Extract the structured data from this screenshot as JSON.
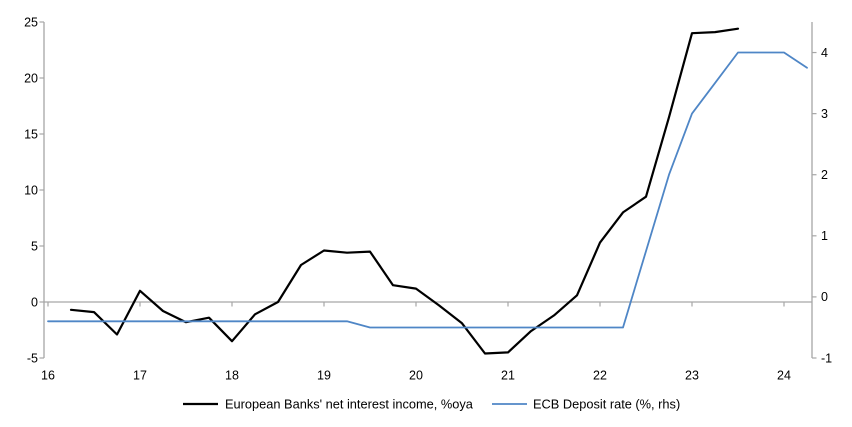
{
  "chart_data": {
    "type": "line",
    "title": "",
    "grid": "zero-line-only",
    "legend_position": "bottom-center",
    "background": "#ffffff",
    "axis_color": "#a6a6a6",
    "series": [
      {
        "name": "european-banks-nii",
        "legend_label": "European Banks' net interest income, %oya",
        "axis": "left",
        "color": "#000000",
        "stroke_width": 2.2,
        "x": [
          16.25,
          16.5,
          16.75,
          17.0,
          17.25,
          17.5,
          17.75,
          18.0,
          18.25,
          18.5,
          18.75,
          19.0,
          19.25,
          19.5,
          19.75,
          20.0,
          20.25,
          20.5,
          20.75,
          21.0,
          21.25,
          21.5,
          21.75,
          22.0,
          22.25,
          22.5,
          22.75,
          23.0,
          23.25,
          23.5
        ],
        "values": [
          -0.7,
          -0.9,
          -2.9,
          1.0,
          -0.8,
          -1.8,
          -1.4,
          -3.5,
          -1.1,
          0.0,
          3.3,
          4.6,
          4.4,
          4.5,
          1.5,
          1.2,
          -0.3,
          -1.9,
          -4.6,
          -4.5,
          -2.6,
          -1.2,
          0.6,
          5.3,
          8.0,
          9.4,
          16.5,
          24.0,
          24.1,
          24.4
        ]
      },
      {
        "name": "ecb-deposit-rate",
        "legend_label": "ECB Deposit rate (%, rhs)",
        "axis": "right",
        "color": "#4f86c6",
        "stroke_width": 1.8,
        "x": [
          16.0,
          16.25,
          16.5,
          16.75,
          17.0,
          17.25,
          17.5,
          17.75,
          18.0,
          18.25,
          18.5,
          18.75,
          19.0,
          19.25,
          19.5,
          19.75,
          20.0,
          20.25,
          20.5,
          20.75,
          21.0,
          21.25,
          21.5,
          21.75,
          22.0,
          22.25,
          22.5,
          22.75,
          23.0,
          23.25,
          23.5,
          23.75,
          24.0,
          24.25
        ],
        "values": [
          -0.4,
          -0.4,
          -0.4,
          -0.4,
          -0.4,
          -0.4,
          -0.4,
          -0.4,
          -0.4,
          -0.4,
          -0.4,
          -0.4,
          -0.4,
          -0.4,
          -0.5,
          -0.5,
          -0.5,
          -0.5,
          -0.5,
          -0.5,
          -0.5,
          -0.5,
          -0.5,
          -0.5,
          -0.5,
          -0.5,
          0.75,
          2.0,
          3.0,
          3.5,
          4.0,
          4.0,
          4.0,
          3.75
        ]
      }
    ],
    "left_axis": {
      "min": -5,
      "max": 25,
      "ticks": [
        25,
        20,
        15,
        10,
        5,
        0,
        -5
      ]
    },
    "right_axis": {
      "min": -1,
      "max": 4.5,
      "ticks": [
        4,
        3,
        2,
        1,
        0,
        -1
      ]
    },
    "x_axis": {
      "min": 16,
      "max": 24.3,
      "ticks": [
        16,
        17,
        18,
        19,
        20,
        21,
        22,
        23,
        24
      ]
    }
  }
}
